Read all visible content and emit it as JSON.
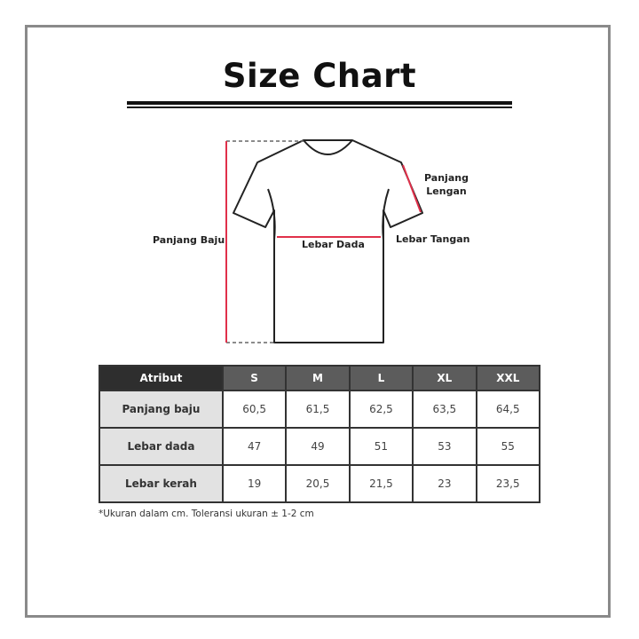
{
  "title": "Size Chart",
  "diagram": {
    "length": "Panjang Baju",
    "chest": "Lebar Dada",
    "sleeve_length": "Panjang Lengan",
    "sleeve_width": "Lebar Tangan",
    "accent_color": "#e0304a"
  },
  "table": {
    "headers": [
      "Atribut",
      "S",
      "M",
      "L",
      "XL",
      "XXL"
    ],
    "rows": [
      {
        "label": "Panjang baju",
        "values": [
          "60,5",
          "61,5",
          "62,5",
          "63,5",
          "64,5"
        ]
      },
      {
        "label": "Lebar dada",
        "values": [
          "47",
          "49",
          "51",
          "53",
          "55"
        ]
      },
      {
        "label": "Lebar kerah",
        "values": [
          "19",
          "20,5",
          "21,5",
          "23",
          "23,5"
        ]
      }
    ]
  },
  "note": "*Ukuran dalam cm. Toleransi ukuran ± 1-2 cm"
}
